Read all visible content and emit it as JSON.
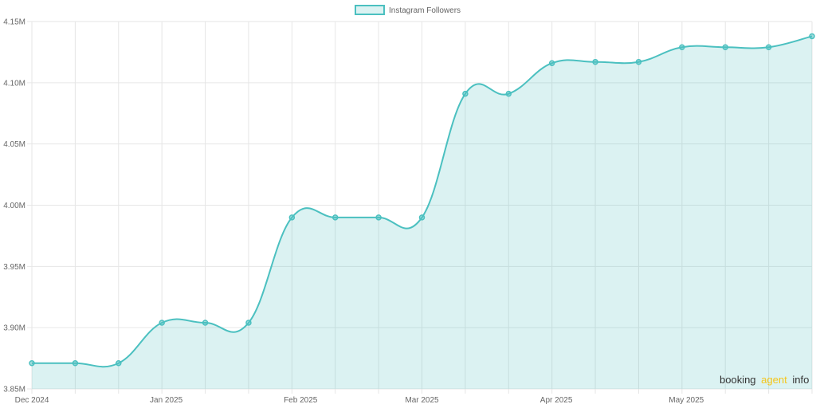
{
  "chart_data": {
    "type": "area",
    "series": [
      {
        "name": "Instagram Followers",
        "color": "#4bc0c0",
        "fill": "rgba(75,192,192,0.2)",
        "points": [
          {
            "date": "2024-12-01",
            "value": 3871000
          },
          {
            "date": "2024-12-11",
            "value": 3871000
          },
          {
            "date": "2024-12-21",
            "value": 3871000
          },
          {
            "date": "2024-12-31",
            "value": 3904000
          },
          {
            "date": "2025-01-10",
            "value": 3904000
          },
          {
            "date": "2025-01-20",
            "value": 3904000
          },
          {
            "date": "2025-01-30",
            "value": 3990000
          },
          {
            "date": "2025-02-09",
            "value": 3990000
          },
          {
            "date": "2025-02-19",
            "value": 3990000
          },
          {
            "date": "2025-03-01",
            "value": 3990000
          },
          {
            "date": "2025-03-11",
            "value": 4091000
          },
          {
            "date": "2025-03-21",
            "value": 4091000
          },
          {
            "date": "2025-03-31",
            "value": 4116000
          },
          {
            "date": "2025-04-10",
            "value": 4117000
          },
          {
            "date": "2025-04-20",
            "value": 4117000
          },
          {
            "date": "2025-04-30",
            "value": 4129000
          },
          {
            "date": "2025-05-10",
            "value": 4129000
          },
          {
            "date": "2025-05-20",
            "value": 4129000
          },
          {
            "date": "2025-05-30",
            "value": 4138000
          }
        ]
      }
    ],
    "x_ticks": [
      {
        "date": "2024-12-01",
        "label": "Dec 2024"
      },
      {
        "date": "2025-01-01",
        "label": "Jan 2025"
      },
      {
        "date": "2025-02-01",
        "label": "Feb 2025"
      },
      {
        "date": "2025-03-01",
        "label": "Mar 2025"
      },
      {
        "date": "2025-04-01",
        "label": "Apr 2025"
      },
      {
        "date": "2025-05-01",
        "label": "May 2025"
      }
    ],
    "y_ticks": [
      {
        "value": 3850000,
        "label": "3.85M"
      },
      {
        "value": 3900000,
        "label": "3.90M"
      },
      {
        "value": 3950000,
        "label": "3.95M"
      },
      {
        "value": 4000000,
        "label": "4.00M"
      },
      {
        "value": 4050000,
        "label": "4.05M"
      },
      {
        "value": 4100000,
        "label": "4.10M"
      },
      {
        "value": 4150000,
        "label": "4.15M"
      }
    ],
    "xlim": [
      "2024-12-01",
      "2025-05-30"
    ],
    "ylim": [
      3850000,
      4150000
    ],
    "grid": true,
    "legend_position": "top"
  },
  "legend": {
    "label": "Instagram Followers"
  },
  "watermark": {
    "part1": "booking",
    "part2": "agent",
    "part3": "info"
  },
  "colors": {
    "line": "#4bc0c0",
    "fill": "rgba(75,192,192,0.2)",
    "grid": "#e6e6e6",
    "axis_text": "#666666",
    "watermark_dark": "#333333",
    "watermark_accent": "#f5c518"
  }
}
